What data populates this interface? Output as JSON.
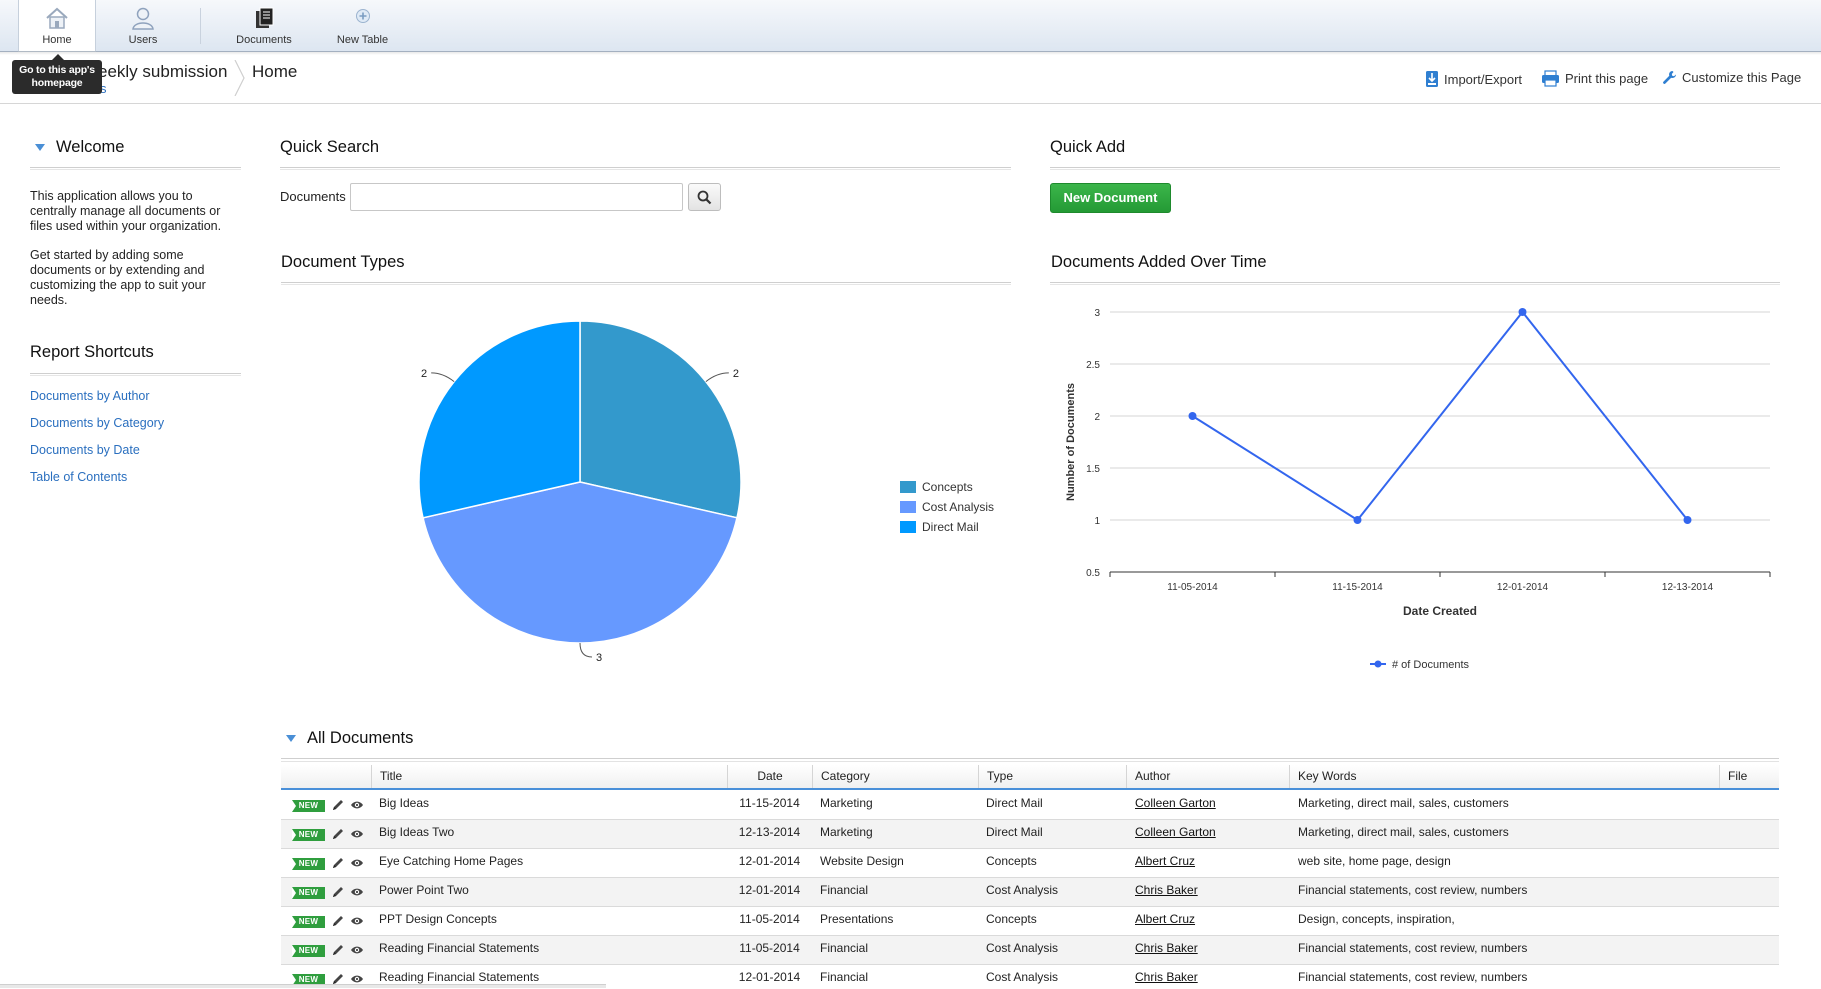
{
  "toolbar": {
    "home": "Home",
    "users": "Users",
    "documents": "Documents",
    "new_table": "New Table",
    "tooltip": "Go to this app's homepage"
  },
  "breadcrumb": {
    "app_name": "eekly submission",
    "app_sub": "s",
    "current": "Home"
  },
  "actions": {
    "import_export": "Import/Export",
    "print": "Print this page",
    "customize": "Customize this Page"
  },
  "sidebar": {
    "welcome_title": "Welcome",
    "welcome_p1": "This application allows you to centrally manage all documents or files used within your organization.",
    "welcome_p2": "Get started by adding some documents or by extending and customizing the app to suit your needs.",
    "shortcuts_title": "Report Shortcuts",
    "shortcuts": [
      "Documents by Author",
      "Documents by Category",
      "Documents by Date",
      "Table of Contents"
    ]
  },
  "quick_search": {
    "title": "Quick Search",
    "label": "Documents",
    "value": ""
  },
  "quick_add": {
    "title": "Quick Add",
    "button": "New Document"
  },
  "doc_types": {
    "title": "Document Types"
  },
  "docs_over_time": {
    "title": "Documents Added Over Time"
  },
  "colors": {
    "concepts": "#3399cc",
    "cost_analysis": "#6699ff",
    "direct_mail": "#0099ff",
    "line": "#3366ee",
    "accent_blue": "#2a6fbf",
    "new_green": "#2f9e3e"
  },
  "chart_data": [
    {
      "type": "pie",
      "title": "Document Types",
      "categories": [
        "Concepts",
        "Cost Analysis",
        "Direct Mail"
      ],
      "values": [
        2,
        3,
        2
      ],
      "labels": [
        "2",
        "3",
        "2"
      ],
      "legend": "right"
    },
    {
      "type": "line",
      "title": "Documents Added Over Time",
      "xlabel": "Date Created",
      "ylabel": "Number of Documents",
      "x": [
        "11-05-2014",
        "11-15-2014",
        "12-01-2014",
        "12-13-2014"
      ],
      "yticks": [
        "0.5",
        "1",
        "1.5",
        "2",
        "2.5",
        "3"
      ],
      "ylim": [
        0.5,
        3
      ],
      "series": [
        {
          "name": "# of Documents",
          "values": [
            2,
            1,
            3,
            1
          ]
        }
      ],
      "grid": true,
      "legend": "bottom"
    }
  ],
  "table": {
    "title": "All Documents",
    "columns": [
      "Title",
      "Date",
      "Category",
      "Type",
      "Author",
      "Key Words",
      "File"
    ],
    "badge": "NEW",
    "rows": [
      {
        "title": "Big Ideas",
        "date": "11-15-2014",
        "category": "Marketing",
        "type": "Direct Mail",
        "author": "Colleen Garton",
        "keywords": "Marketing, direct mail, sales, customers"
      },
      {
        "title": "Big Ideas Two",
        "date": "12-13-2014",
        "category": "Marketing",
        "type": "Direct Mail",
        "author": "Colleen Garton",
        "keywords": "Marketing, direct mail, sales, customers"
      },
      {
        "title": "Eye Catching Home Pages",
        "date": "12-01-2014",
        "category": "Website Design",
        "type": "Concepts",
        "author": "Albert Cruz",
        "keywords": "web site, home page, design"
      },
      {
        "title": "Power Point Two",
        "date": "12-01-2014",
        "category": "Financial",
        "type": "Cost Analysis",
        "author": "Chris Baker",
        "keywords": "Financial statements, cost review, numbers"
      },
      {
        "title": "PPT Design Concepts",
        "date": "11-05-2014",
        "category": "Presentations",
        "type": "Concepts",
        "author": "Albert Cruz",
        "keywords": "Design, concepts, inspiration,"
      },
      {
        "title": "Reading Financial Statements",
        "date": "11-05-2014",
        "category": "Financial",
        "type": "Cost Analysis",
        "author": "Chris Baker",
        "keywords": "Financial statements, cost review, numbers"
      },
      {
        "title": "Reading Financial Statements",
        "date": "12-01-2014",
        "category": "Financial",
        "type": "Cost Analysis",
        "author": "Chris Baker",
        "keywords": "Financial statements, cost review, numbers"
      }
    ]
  }
}
